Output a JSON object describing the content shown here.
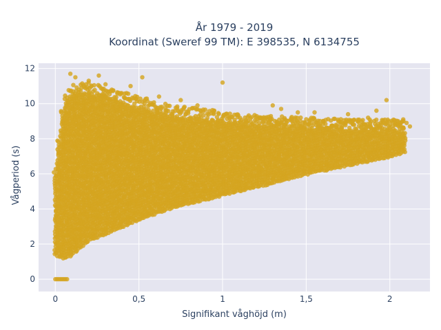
{
  "chart_data": {
    "type": "scatter",
    "title_line1": "År 1979 - 2019",
    "title_line2": "Koordinat (Sweref 99 TM): E 398535, N 6134755",
    "xlabel": "Signifikant våghöjd (m)",
    "ylabel": "Vågperiod (s)",
    "xlim": [
      -0.1,
      2.24
    ],
    "ylim": [
      -0.7,
      12.3
    ],
    "x_ticks": [
      0,
      0.5,
      1,
      1.5,
      2
    ],
    "x_tick_labels": [
      "0",
      "0,5",
      "1",
      "1,5",
      "2"
    ],
    "y_ticks": [
      0,
      2,
      4,
      6,
      8,
      10,
      12
    ],
    "y_tick_labels": [
      "0",
      "2",
      "4",
      "6",
      "8",
      "10",
      "12"
    ],
    "grid": true,
    "legend": "none",
    "marker_color": "#D4A520",
    "plot_bg": "#E5E5F0",
    "grid_color": "#FFFFFF",
    "density_envelope": {
      "x": [
        0.0,
        0.05,
        0.1,
        0.2,
        0.3,
        0.5,
        0.7,
        1.0,
        1.3,
        1.5,
        1.8,
        2.0,
        2.1
      ],
      "y_low": [
        1.4,
        1.2,
        1.4,
        2.2,
        2.6,
        3.4,
        4.1,
        4.8,
        5.5,
        6.0,
        6.6,
        7.0,
        7.3
      ],
      "y_high": [
        6.0,
        9.8,
        10.5,
        10.6,
        10.4,
        9.8,
        9.3,
        9.0,
        8.7,
        8.6,
        8.5,
        8.5,
        8.4
      ]
    },
    "outliers": [
      {
        "x": 0.09,
        "y": 11.7
      },
      {
        "x": 0.12,
        "y": 11.5
      },
      {
        "x": 0.26,
        "y": 11.6
      },
      {
        "x": 0.52,
        "y": 11.5
      },
      {
        "x": 0.2,
        "y": 11.3
      },
      {
        "x": 0.3,
        "y": 11.1
      },
      {
        "x": 0.45,
        "y": 11.0
      },
      {
        "x": 1.0,
        "y": 11.2
      },
      {
        "x": 0.62,
        "y": 10.4
      },
      {
        "x": 0.75,
        "y": 10.2
      },
      {
        "x": 0.85,
        "y": 9.9
      },
      {
        "x": 0.95,
        "y": 9.6
      },
      {
        "x": 1.3,
        "y": 9.9
      },
      {
        "x": 1.35,
        "y": 9.7
      },
      {
        "x": 1.55,
        "y": 9.5
      },
      {
        "x": 1.75,
        "y": 9.4
      },
      {
        "x": 1.92,
        "y": 9.6
      },
      {
        "x": 1.98,
        "y": 10.2
      },
      {
        "x": 2.05,
        "y": 9.0
      },
      {
        "x": 2.1,
        "y": 8.9
      },
      {
        "x": 2.12,
        "y": 8.7
      },
      {
        "x": 2.08,
        "y": 9.1
      },
      {
        "x": 1.87,
        "y": 9.2
      },
      {
        "x": 1.45,
        "y": 9.5
      }
    ],
    "zero_period_points": [
      {
        "x": 0.0,
        "y": 0.0
      },
      {
        "x": 0.01,
        "y": 0.0
      },
      {
        "x": 0.02,
        "y": 0.0
      },
      {
        "x": 0.03,
        "y": 0.0
      },
      {
        "x": 0.04,
        "y": 0.0
      },
      {
        "x": 0.05,
        "y": 0.0
      },
      {
        "x": 0.06,
        "y": 0.0
      },
      {
        "x": 0.07,
        "y": 0.0
      }
    ]
  }
}
